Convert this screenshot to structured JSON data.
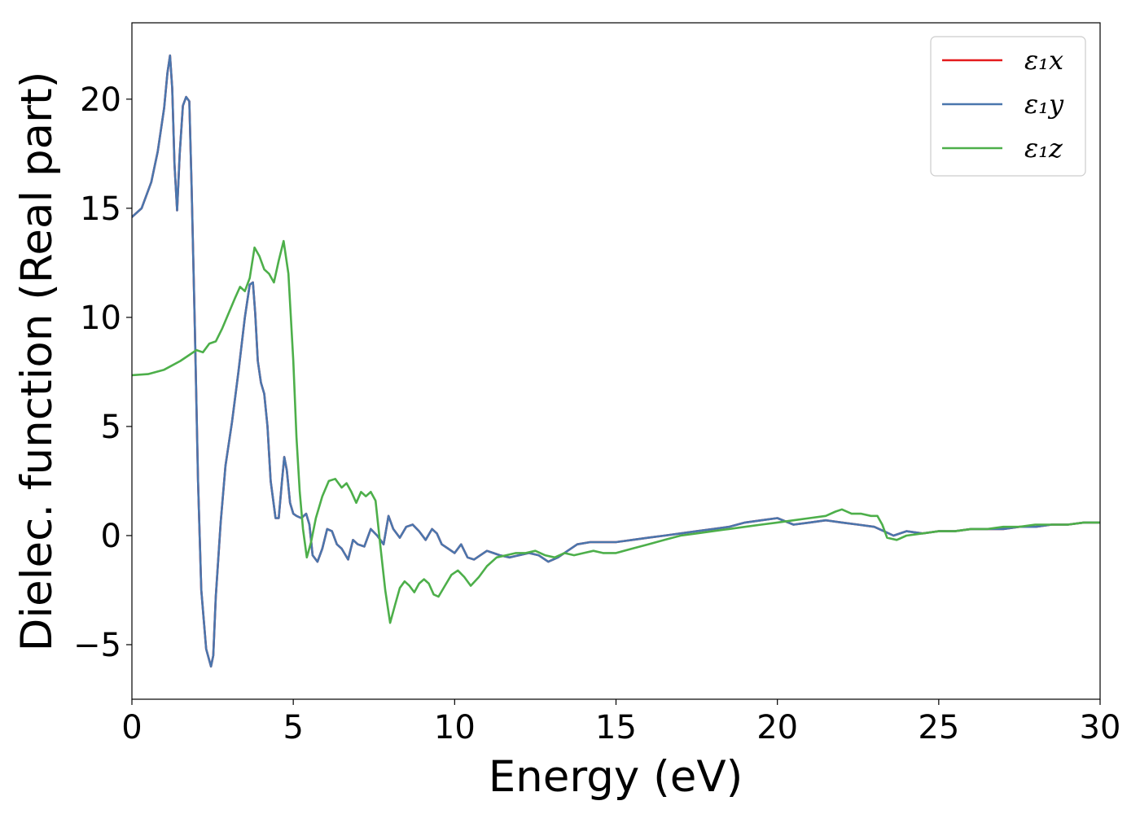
{
  "chart_data": {
    "type": "line",
    "xlabel": "Energy (eV)",
    "ylabel": "Dielec. function (Real part)",
    "xlim": [
      0,
      30
    ],
    "ylim": [
      -7.5,
      23.5
    ],
    "xticks": [
      0,
      5,
      10,
      15,
      20,
      25,
      30
    ],
    "yticks": [
      -5,
      0,
      5,
      10,
      15,
      20
    ],
    "xtick_labels": [
      "0",
      "5",
      "10",
      "15",
      "20",
      "25",
      "30"
    ],
    "ytick_labels": [
      "−5",
      "0",
      "5",
      "10",
      "15",
      "20"
    ],
    "grid": false,
    "legend_position": "top-right",
    "series": [
      {
        "name": "ε₁x",
        "color": "#e41a1c",
        "x": [
          0,
          0.3,
          0.6,
          0.8,
          1.0,
          1.1,
          1.18,
          1.25,
          1.32,
          1.4,
          1.48,
          1.58,
          1.68,
          1.78,
          1.85,
          1.95,
          2.05,
          2.15,
          2.3,
          2.45,
          2.52,
          2.6,
          2.75,
          2.9,
          3.1,
          3.3,
          3.5,
          3.65,
          3.75,
          3.82,
          3.9,
          4.0,
          4.1,
          4.2,
          4.3,
          4.45,
          4.55,
          4.65,
          4.72,
          4.8,
          4.9,
          5.0,
          5.1,
          5.25,
          5.4,
          5.5,
          5.6,
          5.75,
          5.9,
          6.05,
          6.2,
          6.35,
          6.5,
          6.7,
          6.85,
          7.0,
          7.2,
          7.4,
          7.6,
          7.8,
          7.95,
          8.1,
          8.3,
          8.5,
          8.7,
          8.9,
          9.1,
          9.3,
          9.45,
          9.6,
          9.8,
          10.0,
          10.2,
          10.4,
          10.6,
          10.8,
          11.0,
          11.2,
          11.4,
          11.7,
          12.0,
          12.3,
          12.6,
          12.9,
          13.2,
          13.5,
          13.8,
          14.2,
          14.6,
          15.0,
          15.5,
          16.0,
          16.5,
          17.0,
          17.5,
          18.0,
          18.5,
          19.0,
          19.5,
          20.0,
          20.5,
          21.0,
          21.5,
          22.0,
          22.5,
          23.0,
          23.3,
          23.6,
          24.0,
          24.5,
          25.0,
          25.5,
          26.0,
          26.5,
          27.0,
          27.5,
          28.0,
          28.5,
          29.0,
          29.5,
          30.0
        ],
        "y": [
          14.6,
          15.0,
          16.2,
          17.6,
          19.6,
          21.2,
          22.0,
          20.5,
          17.0,
          14.9,
          17.5,
          19.7,
          20.1,
          19.9,
          16.0,
          9.5,
          2.5,
          -2.5,
          -5.2,
          -6.0,
          -5.5,
          -2.8,
          0.6,
          3.2,
          5.2,
          7.5,
          10.0,
          11.5,
          11.6,
          10.2,
          8.0,
          7.0,
          6.5,
          5.0,
          2.5,
          0.8,
          0.8,
          2.5,
          3.6,
          3.0,
          1.5,
          1.0,
          0.9,
          0.8,
          1.0,
          0.5,
          -0.9,
          -1.2,
          -0.6,
          0.3,
          0.2,
          -0.4,
          -0.6,
          -1.1,
          -0.2,
          -0.4,
          -0.5,
          0.3,
          0.0,
          -0.4,
          0.9,
          0.3,
          -0.1,
          0.4,
          0.5,
          0.2,
          -0.2,
          0.3,
          0.1,
          -0.4,
          -0.6,
          -0.8,
          -0.4,
          -1.0,
          -1.1,
          -0.9,
          -0.7,
          -0.8,
          -0.9,
          -1.0,
          -0.9,
          -0.8,
          -0.9,
          -1.2,
          -1.0,
          -0.7,
          -0.4,
          -0.3,
          -0.3,
          -0.3,
          -0.2,
          -0.1,
          0.0,
          0.1,
          0.2,
          0.3,
          0.4,
          0.6,
          0.7,
          0.8,
          0.5,
          0.6,
          0.7,
          0.6,
          0.5,
          0.4,
          0.2,
          0.0,
          0.2,
          0.1,
          0.2,
          0.2,
          0.3,
          0.3,
          0.3,
          0.4,
          0.4,
          0.5,
          0.5,
          0.6,
          0.6
        ]
      },
      {
        "name": "ε₁y",
        "color": "#4a76ad",
        "x": [
          0,
          0.3,
          0.6,
          0.8,
          1.0,
          1.1,
          1.18,
          1.25,
          1.32,
          1.4,
          1.48,
          1.58,
          1.68,
          1.78,
          1.85,
          1.95,
          2.05,
          2.15,
          2.3,
          2.45,
          2.52,
          2.6,
          2.75,
          2.9,
          3.1,
          3.3,
          3.5,
          3.65,
          3.75,
          3.82,
          3.9,
          4.0,
          4.1,
          4.2,
          4.3,
          4.45,
          4.55,
          4.65,
          4.72,
          4.8,
          4.9,
          5.0,
          5.1,
          5.25,
          5.4,
          5.5,
          5.6,
          5.75,
          5.9,
          6.05,
          6.2,
          6.35,
          6.5,
          6.7,
          6.85,
          7.0,
          7.2,
          7.4,
          7.6,
          7.8,
          7.95,
          8.1,
          8.3,
          8.5,
          8.7,
          8.9,
          9.1,
          9.3,
          9.45,
          9.6,
          9.8,
          10.0,
          10.2,
          10.4,
          10.6,
          10.8,
          11.0,
          11.2,
          11.4,
          11.7,
          12.0,
          12.3,
          12.6,
          12.9,
          13.2,
          13.5,
          13.8,
          14.2,
          14.6,
          15.0,
          15.5,
          16.0,
          16.5,
          17.0,
          17.5,
          18.0,
          18.5,
          19.0,
          19.5,
          20.0,
          20.5,
          21.0,
          21.5,
          22.0,
          22.5,
          23.0,
          23.3,
          23.6,
          24.0,
          24.5,
          25.0,
          25.5,
          26.0,
          26.5,
          27.0,
          27.5,
          28.0,
          28.5,
          29.0,
          29.5,
          30.0
        ],
        "y": [
          14.6,
          15.0,
          16.2,
          17.6,
          19.6,
          21.2,
          22.0,
          20.5,
          17.0,
          14.9,
          17.5,
          19.7,
          20.1,
          19.9,
          16.0,
          9.5,
          2.5,
          -2.5,
          -5.2,
          -6.0,
          -5.5,
          -2.8,
          0.6,
          3.2,
          5.2,
          7.5,
          10.0,
          11.5,
          11.6,
          10.2,
          8.0,
          7.0,
          6.5,
          5.0,
          2.5,
          0.8,
          0.8,
          2.5,
          3.6,
          3.0,
          1.5,
          1.0,
          0.9,
          0.8,
          1.0,
          0.5,
          -0.9,
          -1.2,
          -0.6,
          0.3,
          0.2,
          -0.4,
          -0.6,
          -1.1,
          -0.2,
          -0.4,
          -0.5,
          0.3,
          0.0,
          -0.4,
          0.9,
          0.3,
          -0.1,
          0.4,
          0.5,
          0.2,
          -0.2,
          0.3,
          0.1,
          -0.4,
          -0.6,
          -0.8,
          -0.4,
          -1.0,
          -1.1,
          -0.9,
          -0.7,
          -0.8,
          -0.9,
          -1.0,
          -0.9,
          -0.8,
          -0.9,
          -1.2,
          -1.0,
          -0.7,
          -0.4,
          -0.3,
          -0.3,
          -0.3,
          -0.2,
          -0.1,
          0.0,
          0.1,
          0.2,
          0.3,
          0.4,
          0.6,
          0.7,
          0.8,
          0.5,
          0.6,
          0.7,
          0.6,
          0.5,
          0.4,
          0.2,
          0.0,
          0.2,
          0.1,
          0.2,
          0.2,
          0.3,
          0.3,
          0.3,
          0.4,
          0.4,
          0.5,
          0.5,
          0.6,
          0.6
        ]
      },
      {
        "name": "ε₁z",
        "color": "#4daf4a",
        "x": [
          0,
          0.5,
          1.0,
          1.5,
          1.8,
          2.0,
          2.2,
          2.4,
          2.6,
          2.8,
          3.0,
          3.2,
          3.35,
          3.5,
          3.65,
          3.8,
          3.95,
          4.1,
          4.25,
          4.4,
          4.55,
          4.7,
          4.85,
          5.0,
          5.1,
          5.2,
          5.3,
          5.42,
          5.55,
          5.7,
          5.9,
          6.1,
          6.3,
          6.5,
          6.65,
          6.8,
          6.95,
          7.1,
          7.25,
          7.4,
          7.55,
          7.7,
          7.85,
          8.0,
          8.15,
          8.3,
          8.45,
          8.6,
          8.75,
          8.9,
          9.05,
          9.2,
          9.35,
          9.5,
          9.7,
          9.9,
          10.1,
          10.3,
          10.5,
          10.75,
          11.0,
          11.3,
          11.6,
          11.9,
          12.2,
          12.5,
          12.8,
          13.1,
          13.4,
          13.7,
          14.0,
          14.3,
          14.6,
          15.0,
          15.5,
          16.0,
          16.5,
          17.0,
          17.5,
          18.0,
          18.5,
          19.0,
          19.5,
          20.0,
          20.5,
          21.0,
          21.5,
          21.8,
          22.0,
          22.3,
          22.6,
          22.9,
          23.1,
          23.25,
          23.4,
          23.7,
          24.0,
          24.5,
          25.0,
          25.5,
          26.0,
          26.5,
          27.0,
          27.5,
          28.0,
          28.5,
          29.0,
          29.5,
          30.0
        ],
        "y": [
          7.35,
          7.4,
          7.6,
          8.0,
          8.3,
          8.5,
          8.4,
          8.8,
          8.9,
          9.5,
          10.2,
          10.9,
          11.4,
          11.2,
          11.8,
          13.2,
          12.8,
          12.2,
          12.0,
          11.6,
          12.6,
          13.5,
          12.0,
          8.0,
          4.5,
          2.0,
          0.3,
          -1.0,
          -0.3,
          0.8,
          1.8,
          2.5,
          2.6,
          2.2,
          2.4,
          2.0,
          1.5,
          2.0,
          1.8,
          2.0,
          1.6,
          -0.5,
          -2.5,
          -4.0,
          -3.2,
          -2.4,
          -2.1,
          -2.3,
          -2.6,
          -2.2,
          -2.0,
          -2.2,
          -2.7,
          -2.8,
          -2.3,
          -1.8,
          -1.6,
          -1.9,
          -2.3,
          -1.9,
          -1.4,
          -1.0,
          -0.9,
          -0.8,
          -0.8,
          -0.7,
          -0.9,
          -1.0,
          -0.8,
          -0.9,
          -0.8,
          -0.7,
          -0.8,
          -0.8,
          -0.6,
          -0.4,
          -0.2,
          0.0,
          0.1,
          0.2,
          0.3,
          0.4,
          0.5,
          0.6,
          0.7,
          0.8,
          0.9,
          1.1,
          1.2,
          1.0,
          1.0,
          0.9,
          0.9,
          0.5,
          -0.1,
          -0.2,
          0.0,
          0.1,
          0.2,
          0.2,
          0.3,
          0.3,
          0.4,
          0.4,
          0.5,
          0.5,
          0.5,
          0.6,
          0.6
        ]
      }
    ]
  }
}
